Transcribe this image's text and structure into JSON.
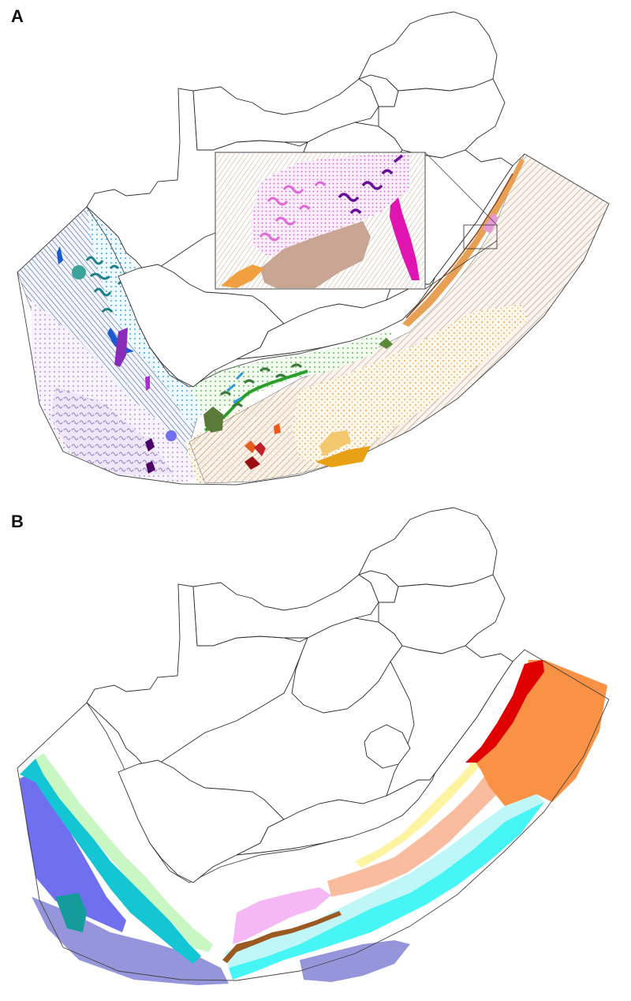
{
  "panels": {
    "a": {
      "label": "A"
    },
    "b": {
      "label": "B"
    }
  },
  "colors": {
    "outline": "#2a2a2a",
    "lilac": "#c4b3e0",
    "lavender": "#9595db",
    "blue": "#6f6ff0",
    "cyan_dark": "#14c6d4",
    "cyan_light": "#46f5f5",
    "aqua_pale": "#bff6f7",
    "mint": "#c8f7c4",
    "pink": "#f5b8f5",
    "peach": "#f9bc9f",
    "orange": "#fa9245",
    "red": "#e00000",
    "yellow": "#fdf3a0",
    "brown": "#9a5a22",
    "teal": "#169b9b",
    "green": "#5a8a3a",
    "magenta": "#e000b0",
    "purple": "#7a00a0",
    "gold": "#e89c1c"
  },
  "icons": {
    "inset_box": "zoom-inset",
    "inset_marker": "inset-marker-box"
  }
}
